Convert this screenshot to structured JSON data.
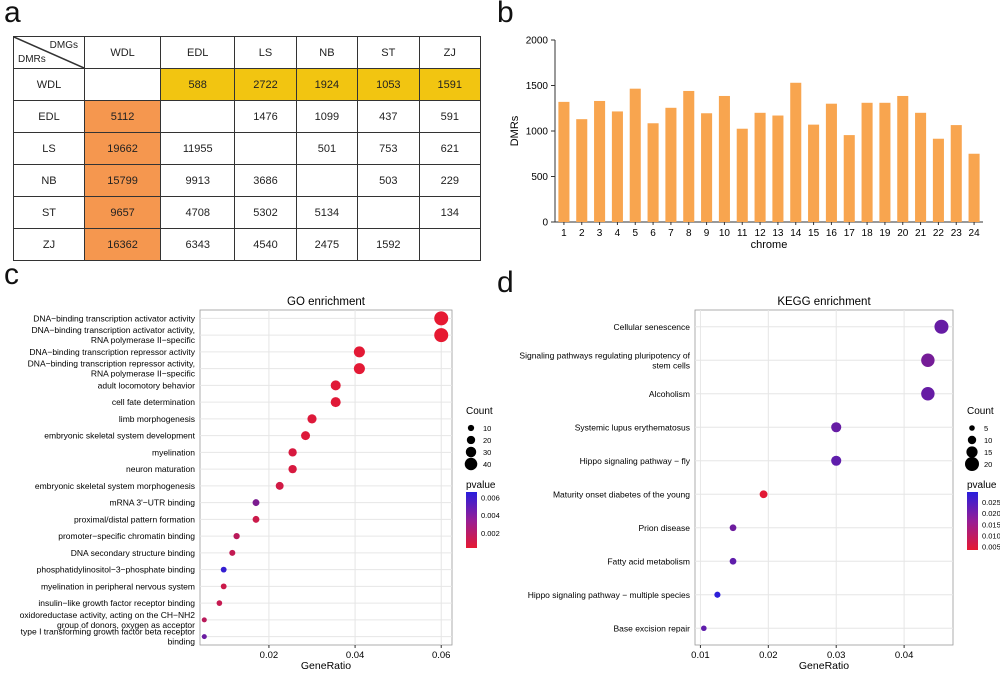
{
  "panels": {
    "a": "a",
    "b": "b",
    "c": "c",
    "d": "d"
  },
  "colors": {
    "bar": "#f8a54f",
    "yellow": "#f2c511",
    "orange": "#f5974f",
    "grid": "#e6e6e6"
  },
  "table": {
    "corner_top": "DMGs",
    "corner_bottom": "DMRs",
    "headers": [
      "WDL",
      "EDL",
      "LS",
      "NB",
      "ST",
      "ZJ"
    ],
    "rows": [
      {
        "label": "WDL",
        "cells": [
          "",
          "588",
          "2722",
          "1924",
          "1053",
          "1591"
        ]
      },
      {
        "label": "EDL",
        "cells": [
          "5112",
          "",
          "1476",
          "1099",
          "437",
          "591"
        ]
      },
      {
        "label": "LS",
        "cells": [
          "19662",
          "11955",
          "",
          "501",
          "753",
          "621"
        ]
      },
      {
        "label": "NB",
        "cells": [
          "15799",
          "9913",
          "3686",
          "",
          "503",
          "229"
        ]
      },
      {
        "label": "ST",
        "cells": [
          "9657",
          "4708",
          "5302",
          "5134",
          "",
          "134"
        ]
      },
      {
        "label": "ZJ",
        "cells": [
          "16362",
          "6343",
          "4540",
          "2475",
          "1592",
          ""
        ]
      }
    ]
  },
  "chart_data": [
    {
      "type": "bar",
      "xlabel": "chrome",
      "ylabel": "DMRs",
      "ylim": [
        0,
        2000
      ],
      "yticks": [
        0,
        500,
        1000,
        1500,
        2000
      ],
      "categories": [
        "1",
        "2",
        "3",
        "4",
        "5",
        "6",
        "7",
        "8",
        "9",
        "10",
        "11",
        "12",
        "13",
        "14",
        "15",
        "16",
        "17",
        "18",
        "19",
        "20",
        "21",
        "22",
        "23",
        "24"
      ],
      "values": [
        1320,
        1130,
        1330,
        1215,
        1465,
        1085,
        1255,
        1440,
        1195,
        1385,
        1025,
        1200,
        1170,
        1530,
        1070,
        1300,
        955,
        1310,
        1310,
        1385,
        1200,
        915,
        1065,
        750
      ]
    },
    {
      "type": "scatter",
      "title": "GO enrichment",
      "xlabel": "GeneRatio",
      "xlim": [
        0.004,
        0.0625
      ],
      "xticks": [
        "0.02",
        "0.04",
        "0.06"
      ],
      "categories": [
        "DNA−binding transcription activator activity",
        "DNA−binding transcription activator activity, RNA polymerase II−specific",
        "DNA−binding transcription repressor activity",
        "DNA−binding transcription repressor activity, RNA polymerase II−specific",
        "adult locomotory behavior",
        "cell fate determination",
        "limb morphogenesis",
        "embryonic skeletal system development",
        "myelination",
        "neuron maturation",
        "embryonic skeletal system morphogenesis",
        "mRNA 3'−UTR binding",
        "proximal/distal pattern formation",
        "promoter−specific chromatin binding",
        "DNA secondary structure binding",
        "phosphatidylinositol−3−phosphate binding",
        "myelination in peripheral nervous system",
        "insulin−like growth factor receptor binding",
        "oxidoreductase activity, acting on the CH−NH2 group of donors, oxygen as acceptor",
        "type I transforming growth factor beta receptor binding"
      ],
      "x": [
        0.06,
        0.06,
        0.041,
        0.041,
        0.0355,
        0.0355,
        0.03,
        0.0285,
        0.0255,
        0.0255,
        0.0225,
        0.017,
        0.017,
        0.0125,
        0.0115,
        0.0095,
        0.0095,
        0.0085,
        0.005,
        0.005
      ],
      "count": [
        47,
        47,
        33,
        33,
        28,
        28,
        24,
        23,
        20,
        20,
        18,
        13,
        13,
        10,
        9,
        8,
        8,
        7,
        4,
        4
      ],
      "pvalue": [
        0.0003,
        0.0003,
        0.0004,
        0.0004,
        0.0005,
        0.0005,
        0.0006,
        0.0006,
        0.0008,
        0.0008,
        0.001,
        0.0038,
        0.0012,
        0.0018,
        0.0015,
        0.0062,
        0.0012,
        0.0014,
        0.0018,
        0.0044
      ],
      "legend_count_title": "Count",
      "legend_count_values": [
        "10",
        "20",
        "30",
        "40"
      ],
      "legend_p_title": "pvalue",
      "legend_p_values": [
        "0.006",
        "0.004",
        "0.002"
      ]
    },
    {
      "type": "scatter",
      "title": "KEGG enrichment",
      "xlabel": "GeneRatio",
      "xlim": [
        0.0092,
        0.0472
      ],
      "xticks": [
        "0.01",
        "0.02",
        "0.03",
        "0.04"
      ],
      "categories": [
        "Cellular senescence",
        "Signaling pathways regulating pluripotency of stem cells",
        "Alcoholism",
        "Systemic lupus erythematosus",
        "Hippo signaling pathway − fly",
        "Maturity onset diabetes of the young",
        "Prion disease",
        "Fatty acid metabolism",
        "Hippo signaling pathway − multiple species",
        "Base excision repair"
      ],
      "x": [
        0.0455,
        0.0435,
        0.0435,
        0.03,
        0.03,
        0.0193,
        0.0148,
        0.0148,
        0.0125,
        0.0105
      ],
      "count": [
        20,
        19,
        19,
        13,
        13,
        9,
        7,
        7,
        6,
        5
      ],
      "pvalue": [
        0.021,
        0.019,
        0.021,
        0.021,
        0.022,
        0.004,
        0.02,
        0.022,
        0.029,
        0.022
      ],
      "legend_count_title": "Count",
      "legend_count_values": [
        "5",
        "10",
        "15",
        "20"
      ],
      "legend_p_title": "pvalue",
      "legend_p_values": [
        "0.025",
        "0.020",
        "0.015",
        "0.010",
        "0.005"
      ]
    }
  ]
}
